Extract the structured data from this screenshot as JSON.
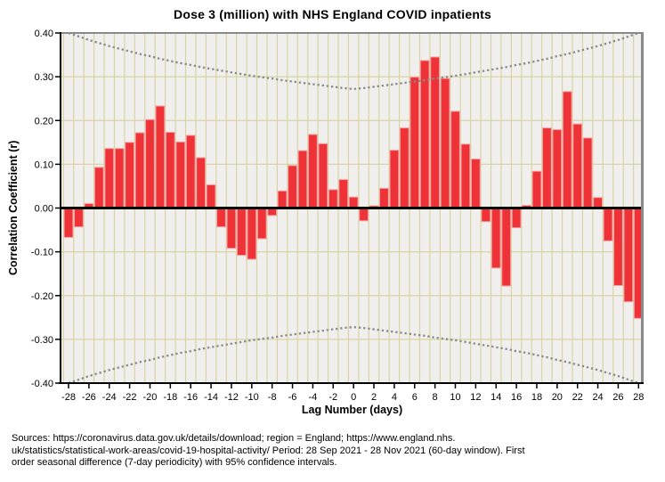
{
  "title": "Dose 3 (million) with NHS England COVID inpatients",
  "y_axis": {
    "label": "Correlation Coefficient (r)",
    "tick_labels": [
      "0.40",
      "0.30",
      "0.20",
      "0.10",
      "0.00",
      "-0.10",
      "-0.20",
      "-0.30",
      "-0.40"
    ],
    "tick_values": [
      0.4,
      0.3,
      0.2,
      0.1,
      0.0,
      -0.1,
      -0.2,
      -0.3,
      -0.4
    ]
  },
  "x_axis": {
    "label": "Lag Number (days)",
    "tick_values": [
      -28,
      -26,
      -24,
      -22,
      -20,
      -18,
      -16,
      -14,
      -12,
      -10,
      -8,
      -6,
      -4,
      -2,
      0,
      2,
      4,
      6,
      8,
      10,
      12,
      14,
      16,
      18,
      20,
      22,
      24,
      26,
      28
    ]
  },
  "caption_lines": [
    "Sources: https://coronavirus.data.gov.uk/details/download; region = England; https://www.england.nhs.",
    "uk/statistics/statistical-work-areas/covid-19-hospital-activity/ Period: 28 Sep 2021 - 28 Nov 2021 (60-day window). First",
    "order seasonal difference (7-day periodicity) with 95% confidence intervals."
  ],
  "colors": {
    "bar_fill": "#EE3237",
    "bar_edge": "#F2A0A2",
    "plot_bg": "#F0EFED",
    "grid": "#D9D3A4",
    "ci_line": "#8A8A8A",
    "zero_line": "#000000",
    "frame": "#8A8A8A",
    "axis": "#000000",
    "text": "#000000"
  },
  "chart_data": {
    "type": "bar",
    "title": "Dose 3 (million) with NHS England COVID inpatients",
    "xlabel": "Lag Number (days)",
    "ylabel": "Correlation Coefficient (r)",
    "xlim": [
      -28.5,
      28.5
    ],
    "ylim": [
      -0.4,
      0.4
    ],
    "grid": true,
    "legend": false,
    "lags": [
      -28,
      -27,
      -26,
      -25,
      -24,
      -23,
      -22,
      -21,
      -20,
      -19,
      -18,
      -17,
      -16,
      -15,
      -14,
      -13,
      -12,
      -11,
      -10,
      -9,
      -8,
      -7,
      -6,
      -5,
      -4,
      -3,
      -2,
      -1,
      0,
      1,
      2,
      3,
      4,
      5,
      6,
      7,
      8,
      9,
      10,
      11,
      12,
      13,
      14,
      15,
      16,
      17,
      18,
      19,
      20,
      21,
      22,
      23,
      24,
      25,
      26,
      27,
      28
    ],
    "values": [
      -0.067,
      -0.043,
      0.01,
      0.093,
      0.136,
      0.136,
      0.15,
      0.172,
      0.202,
      0.233,
      0.173,
      0.151,
      0.166,
      0.115,
      0.053,
      -0.043,
      -0.092,
      -0.108,
      -0.117,
      -0.07,
      -0.017,
      0.039,
      0.097,
      0.131,
      0.168,
      0.147,
      0.042,
      0.065,
      0.025,
      -0.029,
      0.005,
      0.045,
      0.132,
      0.183,
      0.299,
      0.337,
      0.345,
      0.296,
      0.221,
      0.146,
      0.112,
      -0.031,
      -0.137,
      -0.178,
      -0.045,
      0.006,
      0.084,
      0.183,
      0.179,
      0.266,
      0.192,
      0.16,
      0.024,
      -0.075,
      -0.177,
      -0.214,
      -0.252
    ],
    "ci_upper": [
      0.4,
      0.392,
      0.384,
      0.377,
      0.37,
      0.364,
      0.358,
      0.352,
      0.347,
      0.341,
      0.336,
      0.331,
      0.327,
      0.322,
      0.318,
      0.314,
      0.31,
      0.306,
      0.302,
      0.299,
      0.296,
      0.292,
      0.289,
      0.286,
      0.283,
      0.28,
      0.277,
      0.274,
      0.272,
      0.274,
      0.277,
      0.28,
      0.283,
      0.286,
      0.289,
      0.292,
      0.296,
      0.299,
      0.302,
      0.306,
      0.31,
      0.314,
      0.318,
      0.322,
      0.327,
      0.331,
      0.336,
      0.341,
      0.347,
      0.352,
      0.358,
      0.364,
      0.37,
      0.377,
      0.384,
      0.392,
      0.4
    ],
    "ci_lower": [
      -0.4,
      -0.392,
      -0.384,
      -0.377,
      -0.37,
      -0.364,
      -0.358,
      -0.352,
      -0.347,
      -0.341,
      -0.336,
      -0.331,
      -0.327,
      -0.322,
      -0.318,
      -0.314,
      -0.31,
      -0.306,
      -0.302,
      -0.299,
      -0.296,
      -0.292,
      -0.289,
      -0.286,
      -0.283,
      -0.28,
      -0.277,
      -0.274,
      -0.272,
      -0.274,
      -0.277,
      -0.28,
      -0.283,
      -0.286,
      -0.289,
      -0.292,
      -0.296,
      -0.299,
      -0.302,
      -0.306,
      -0.31,
      -0.314,
      -0.318,
      -0.322,
      -0.327,
      -0.331,
      -0.336,
      -0.341,
      -0.347,
      -0.352,
      -0.358,
      -0.364,
      -0.37,
      -0.377,
      -0.384,
      -0.392,
      -0.4
    ],
    "ci_label": "95% confidence intervals"
  }
}
